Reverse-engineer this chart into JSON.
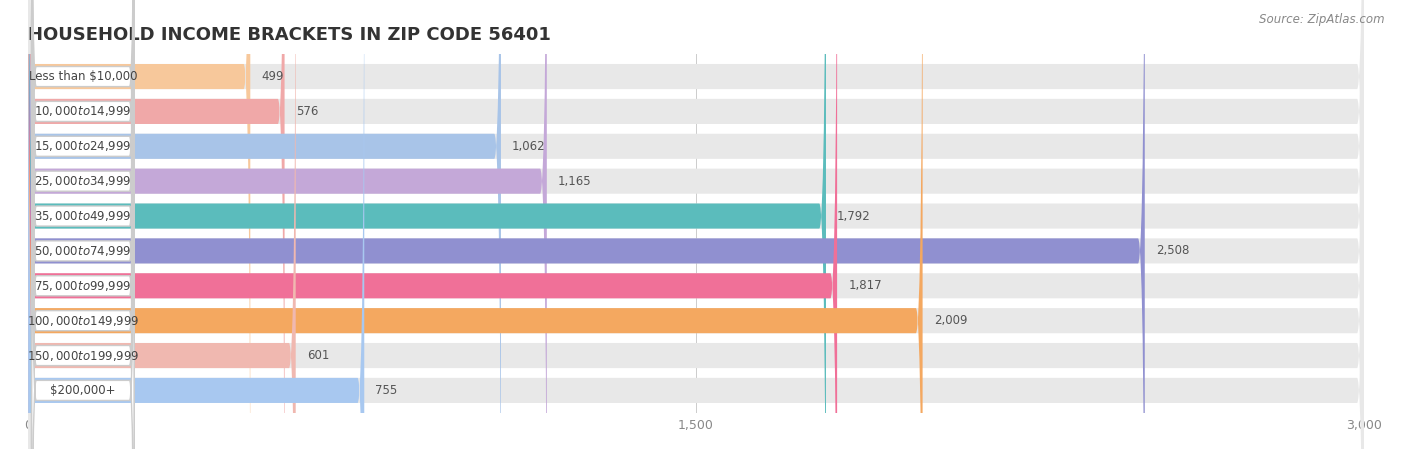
{
  "title": "HOUSEHOLD INCOME BRACKETS IN ZIP CODE 56401",
  "source": "Source: ZipAtlas.com",
  "categories": [
    "Less than $10,000",
    "$10,000 to $14,999",
    "$15,000 to $24,999",
    "$25,000 to $34,999",
    "$35,000 to $49,999",
    "$50,000 to $74,999",
    "$75,000 to $99,999",
    "$100,000 to $149,999",
    "$150,000 to $199,999",
    "$200,000+"
  ],
  "values": [
    499,
    576,
    1062,
    1165,
    1792,
    2508,
    1817,
    2009,
    601,
    755
  ],
  "bar_colors": [
    "#f7c89b",
    "#f0a8a8",
    "#a8c4e8",
    "#c4a8d8",
    "#5bbcbc",
    "#9090d0",
    "#f07098",
    "#f4a860",
    "#f0b8b0",
    "#a8c8f0"
  ],
  "background_color": "#ffffff",
  "bar_bg_color": "#e8e8e8",
  "xlim": [
    0,
    3000
  ],
  "xticks": [
    0,
    1500,
    3000
  ],
  "title_fontsize": 13,
  "label_fontsize": 8.5,
  "value_fontsize": 8.5,
  "source_fontsize": 8.5
}
